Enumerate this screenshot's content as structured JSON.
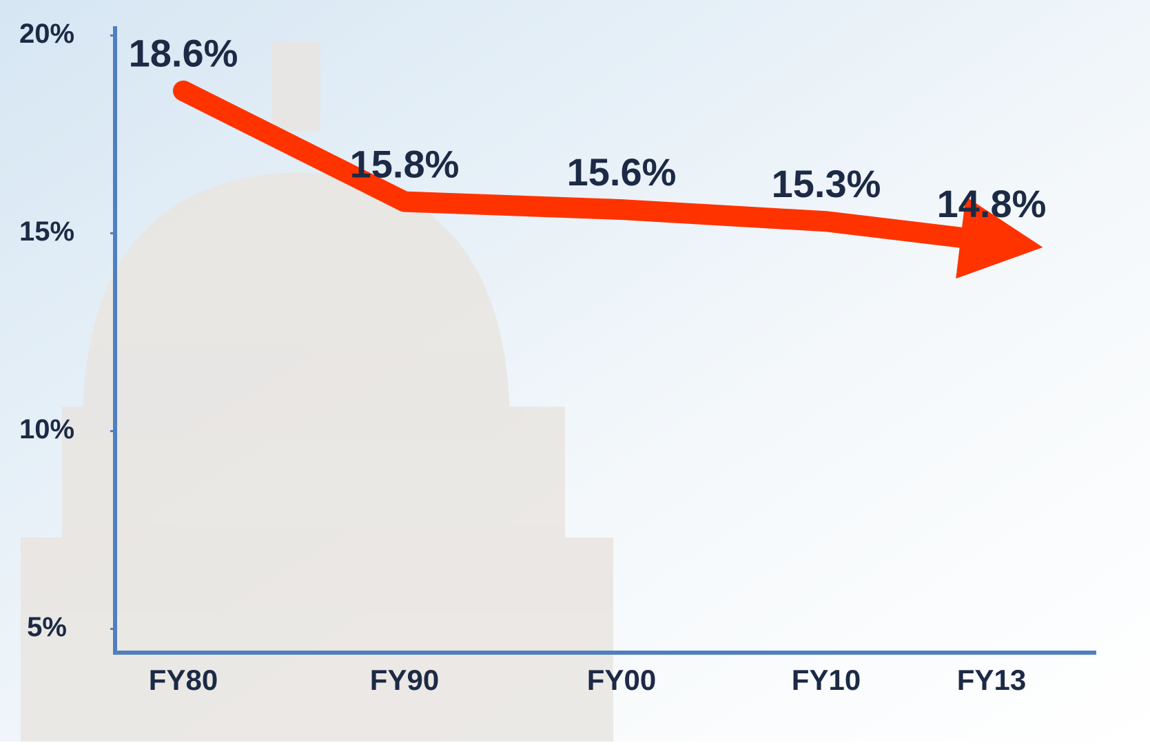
{
  "chart_data": {
    "type": "line",
    "categories": [
      "FY80",
      "FY90",
      "FY00",
      "FY10",
      "FY13"
    ],
    "values": [
      18.6,
      15.8,
      15.6,
      15.3,
      14.8
    ],
    "value_labels": [
      "18.6%",
      "15.8%",
      "15.6%",
      "15.3%",
      "14.8%"
    ],
    "color": "#ff3300",
    "ylim": [
      4.4,
      20.2
    ],
    "yticks": [
      {
        "value": 5,
        "label": "5%"
      },
      {
        "value": 10,
        "label": "10%"
      },
      {
        "value": 15,
        "label": "15%"
      },
      {
        "value": 20,
        "label": "20%"
      }
    ]
  }
}
